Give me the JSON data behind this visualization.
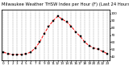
{
  "title": "Milwaukee Weather THSW Index per Hour (F) (Last 24 Hours)",
  "x_hours": [
    0,
    1,
    2,
    3,
    4,
    5,
    6,
    7,
    8,
    9,
    10,
    11,
    12,
    13,
    14,
    15,
    16,
    17,
    18,
    19,
    20,
    21,
    22,
    23
  ],
  "y_values": [
    46,
    44,
    43,
    43,
    43,
    44,
    46,
    52,
    60,
    72,
    82,
    90,
    96,
    92,
    88,
    82,
    74,
    68,
    60,
    55,
    52,
    50,
    47,
    44
  ],
  "line_color": "#ff0000",
  "marker_color": "#000000",
  "marker": "s",
  "linestyle": "--",
  "background_color": "#ffffff",
  "grid_color": "#888888",
  "ylim": [
    35,
    105
  ],
  "yticks": [
    40,
    50,
    60,
    70,
    80,
    90,
    100
  ],
  "tick_fontsize": 3.0,
  "linewidth": 0.7,
  "markersize": 1.5,
  "title_fontsize": 3.8
}
